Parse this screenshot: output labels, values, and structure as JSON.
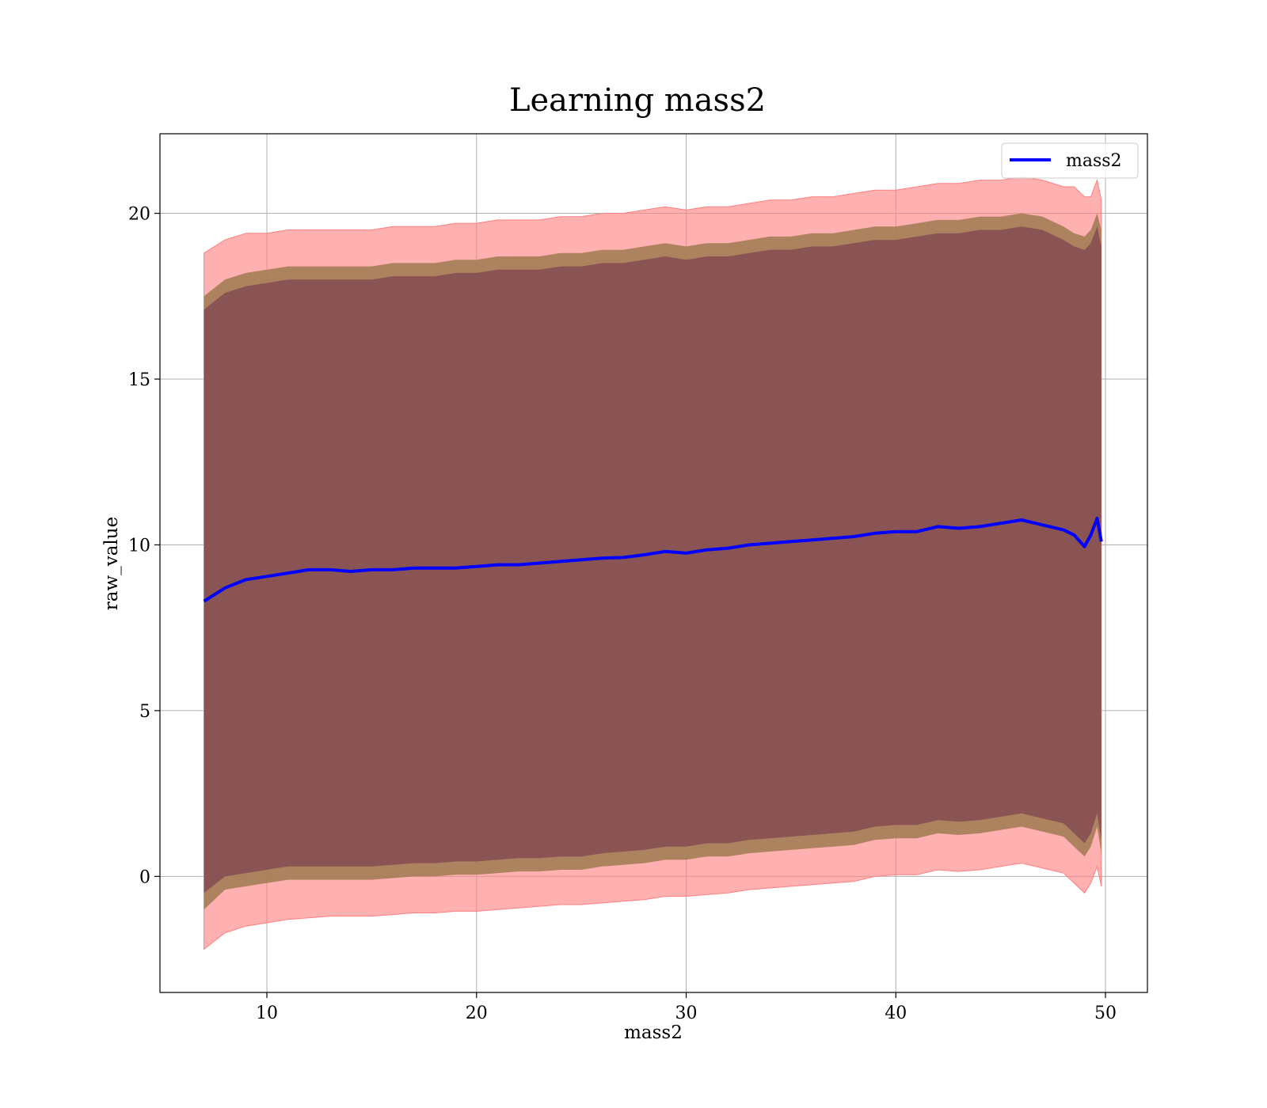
{
  "chart_data": {
    "type": "line",
    "title": "Learning mass2",
    "xlabel": "mass2",
    "ylabel": "raw_value",
    "xlim": [
      4.9,
      52
    ],
    "ylim": [
      -3.5,
      22.4
    ],
    "xticks": [
      10,
      20,
      30,
      40,
      50
    ],
    "yticks": [
      0,
      5,
      10,
      15,
      20
    ],
    "grid": true,
    "legend": {
      "position": "top-right",
      "entries": [
        "mass2"
      ]
    },
    "colors": {
      "line": "#0000ff",
      "outer_band": "#ff8080",
      "middle_band": "#9f7a50",
      "inner_band": "#6f2f4c",
      "grid": "#b0b0b0"
    },
    "series": [
      {
        "name": "mass2",
        "x": [
          7.0,
          8.0,
          9.0,
          10.0,
          11.0,
          12.0,
          13.0,
          14.0,
          15.0,
          16.0,
          17.0,
          18.0,
          19.0,
          20.0,
          21.0,
          22.0,
          23.0,
          24.0,
          25.0,
          26.0,
          27.0,
          28.0,
          29.0,
          30.0,
          31.0,
          32.0,
          33.0,
          34.0,
          35.0,
          36.0,
          37.0,
          38.0,
          39.0,
          40.0,
          41.0,
          42.0,
          43.0,
          44.0,
          45.0,
          46.0,
          47.0,
          48.0,
          48.5,
          49.0,
          49.3,
          49.6,
          49.8
        ],
        "y": [
          8.3,
          8.7,
          8.95,
          9.05,
          9.15,
          9.25,
          9.25,
          9.2,
          9.25,
          9.25,
          9.3,
          9.3,
          9.3,
          9.35,
          9.4,
          9.4,
          9.45,
          9.5,
          9.55,
          9.6,
          9.62,
          9.7,
          9.8,
          9.75,
          9.85,
          9.9,
          10.0,
          10.05,
          10.1,
          10.15,
          10.2,
          10.25,
          10.35,
          10.4,
          10.4,
          10.55,
          10.5,
          10.55,
          10.65,
          10.75,
          10.6,
          10.45,
          10.3,
          9.95,
          10.3,
          10.8,
          10.1
        ],
        "bands": {
          "outer_upper": [
            18.8,
            19.2,
            19.4,
            19.4,
            19.5,
            19.5,
            19.5,
            19.5,
            19.5,
            19.6,
            19.6,
            19.6,
            19.7,
            19.7,
            19.8,
            19.8,
            19.8,
            19.9,
            19.9,
            20.0,
            20.0,
            20.1,
            20.2,
            20.1,
            20.2,
            20.2,
            20.3,
            20.4,
            20.4,
            20.5,
            20.5,
            20.6,
            20.7,
            20.7,
            20.8,
            20.9,
            20.9,
            21.0,
            21.0,
            21.1,
            21.0,
            20.8,
            20.8,
            20.5,
            20.5,
            21.0,
            20.4
          ],
          "middle_upper": [
            17.5,
            18.0,
            18.2,
            18.3,
            18.4,
            18.4,
            18.4,
            18.4,
            18.4,
            18.5,
            18.5,
            18.5,
            18.6,
            18.6,
            18.7,
            18.7,
            18.7,
            18.8,
            18.8,
            18.9,
            18.9,
            19.0,
            19.1,
            19.0,
            19.1,
            19.1,
            19.2,
            19.3,
            19.3,
            19.4,
            19.4,
            19.5,
            19.6,
            19.6,
            19.7,
            19.8,
            19.8,
            19.9,
            19.9,
            20.0,
            19.9,
            19.6,
            19.4,
            19.3,
            19.5,
            20.0,
            19.5
          ],
          "inner_upper": [
            17.1,
            17.6,
            17.8,
            17.9,
            18.0,
            18.0,
            18.0,
            18.0,
            18.0,
            18.1,
            18.1,
            18.1,
            18.2,
            18.2,
            18.3,
            18.3,
            18.3,
            18.4,
            18.4,
            18.5,
            18.5,
            18.6,
            18.7,
            18.6,
            18.7,
            18.7,
            18.8,
            18.9,
            18.9,
            19.0,
            19.0,
            19.1,
            19.2,
            19.2,
            19.3,
            19.4,
            19.4,
            19.5,
            19.5,
            19.6,
            19.5,
            19.2,
            19.0,
            18.9,
            19.1,
            19.6,
            19.0
          ],
          "inner_lower": [
            -0.5,
            0.0,
            0.1,
            0.2,
            0.3,
            0.3,
            0.3,
            0.3,
            0.3,
            0.35,
            0.4,
            0.4,
            0.45,
            0.45,
            0.5,
            0.55,
            0.55,
            0.6,
            0.6,
            0.7,
            0.75,
            0.8,
            0.9,
            0.9,
            1.0,
            1.0,
            1.1,
            1.15,
            1.2,
            1.25,
            1.3,
            1.35,
            1.5,
            1.55,
            1.55,
            1.7,
            1.65,
            1.7,
            1.8,
            1.9,
            1.75,
            1.6,
            1.3,
            1.0,
            1.3,
            1.9,
            1.1
          ],
          "middle_lower": [
            -1.0,
            -0.4,
            -0.3,
            -0.2,
            -0.1,
            -0.1,
            -0.1,
            -0.1,
            -0.1,
            -0.05,
            0.0,
            0.0,
            0.05,
            0.05,
            0.1,
            0.15,
            0.15,
            0.2,
            0.2,
            0.3,
            0.35,
            0.4,
            0.5,
            0.5,
            0.6,
            0.6,
            0.7,
            0.75,
            0.8,
            0.85,
            0.9,
            0.95,
            1.1,
            1.15,
            1.15,
            1.3,
            1.25,
            1.3,
            1.4,
            1.5,
            1.35,
            1.2,
            0.9,
            0.6,
            0.9,
            1.5,
            0.7
          ],
          "outer_lower": [
            -2.2,
            -1.7,
            -1.5,
            -1.4,
            -1.3,
            -1.25,
            -1.2,
            -1.2,
            -1.2,
            -1.15,
            -1.1,
            -1.1,
            -1.05,
            -1.05,
            -1.0,
            -0.95,
            -0.9,
            -0.85,
            -0.85,
            -0.8,
            -0.75,
            -0.7,
            -0.6,
            -0.6,
            -0.55,
            -0.5,
            -0.4,
            -0.35,
            -0.3,
            -0.25,
            -0.2,
            -0.15,
            0.0,
            0.05,
            0.05,
            0.2,
            0.15,
            0.2,
            0.3,
            0.4,
            0.25,
            0.1,
            -0.2,
            -0.5,
            -0.2,
            0.3,
            -0.3
          ]
        }
      }
    ]
  }
}
